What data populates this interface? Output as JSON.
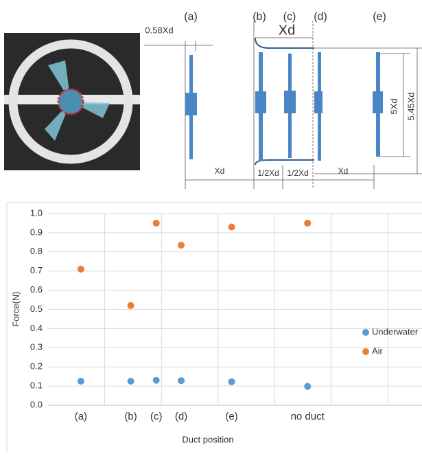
{
  "diagram": {
    "position_labels": [
      "(a)",
      "(b)",
      "(c)",
      "(d)",
      "(e)"
    ],
    "dimension_labels": [
      "0.58Xd",
      "Xd",
      "5Xd",
      "5.45Xd",
      "Xd",
      "1/2Xd",
      "1/2Xd",
      "Xd"
    ]
  },
  "chart_data": {
    "type": "scatter",
    "xlabel": "Duct position",
    "ylabel": "Force(N)",
    "x": [
      0.58,
      1.46,
      1.91,
      2.35,
      3.24,
      4.58
    ],
    "categories": [
      "(a)",
      "(b)",
      "(c)",
      "(d)",
      "(e)",
      "no duct"
    ],
    "series": [
      {
        "name": "Underwater",
        "color": "#5b9bd5",
        "values": [
          0.125,
          0.125,
          0.13,
          0.128,
          0.122,
          0.098
        ]
      },
      {
        "name": "Air",
        "color": "#ed7d31",
        "values": [
          0.71,
          0.52,
          0.95,
          0.835,
          0.93,
          0.95
        ]
      }
    ],
    "xlim": [
      0,
      6.6
    ],
    "xticks": [
      1,
      2,
      3,
      4,
      5,
      6
    ],
    "ylim": [
      0,
      1
    ],
    "yticks": [
      {
        "value": 0,
        "label": "0.0"
      },
      0.1,
      0.2,
      0.3,
      0.4,
      0.5,
      0.6,
      0.7,
      0.8,
      0.9,
      {
        "value": 1,
        "label": "1.0"
      }
    ],
    "grid": true,
    "legend": "right"
  }
}
